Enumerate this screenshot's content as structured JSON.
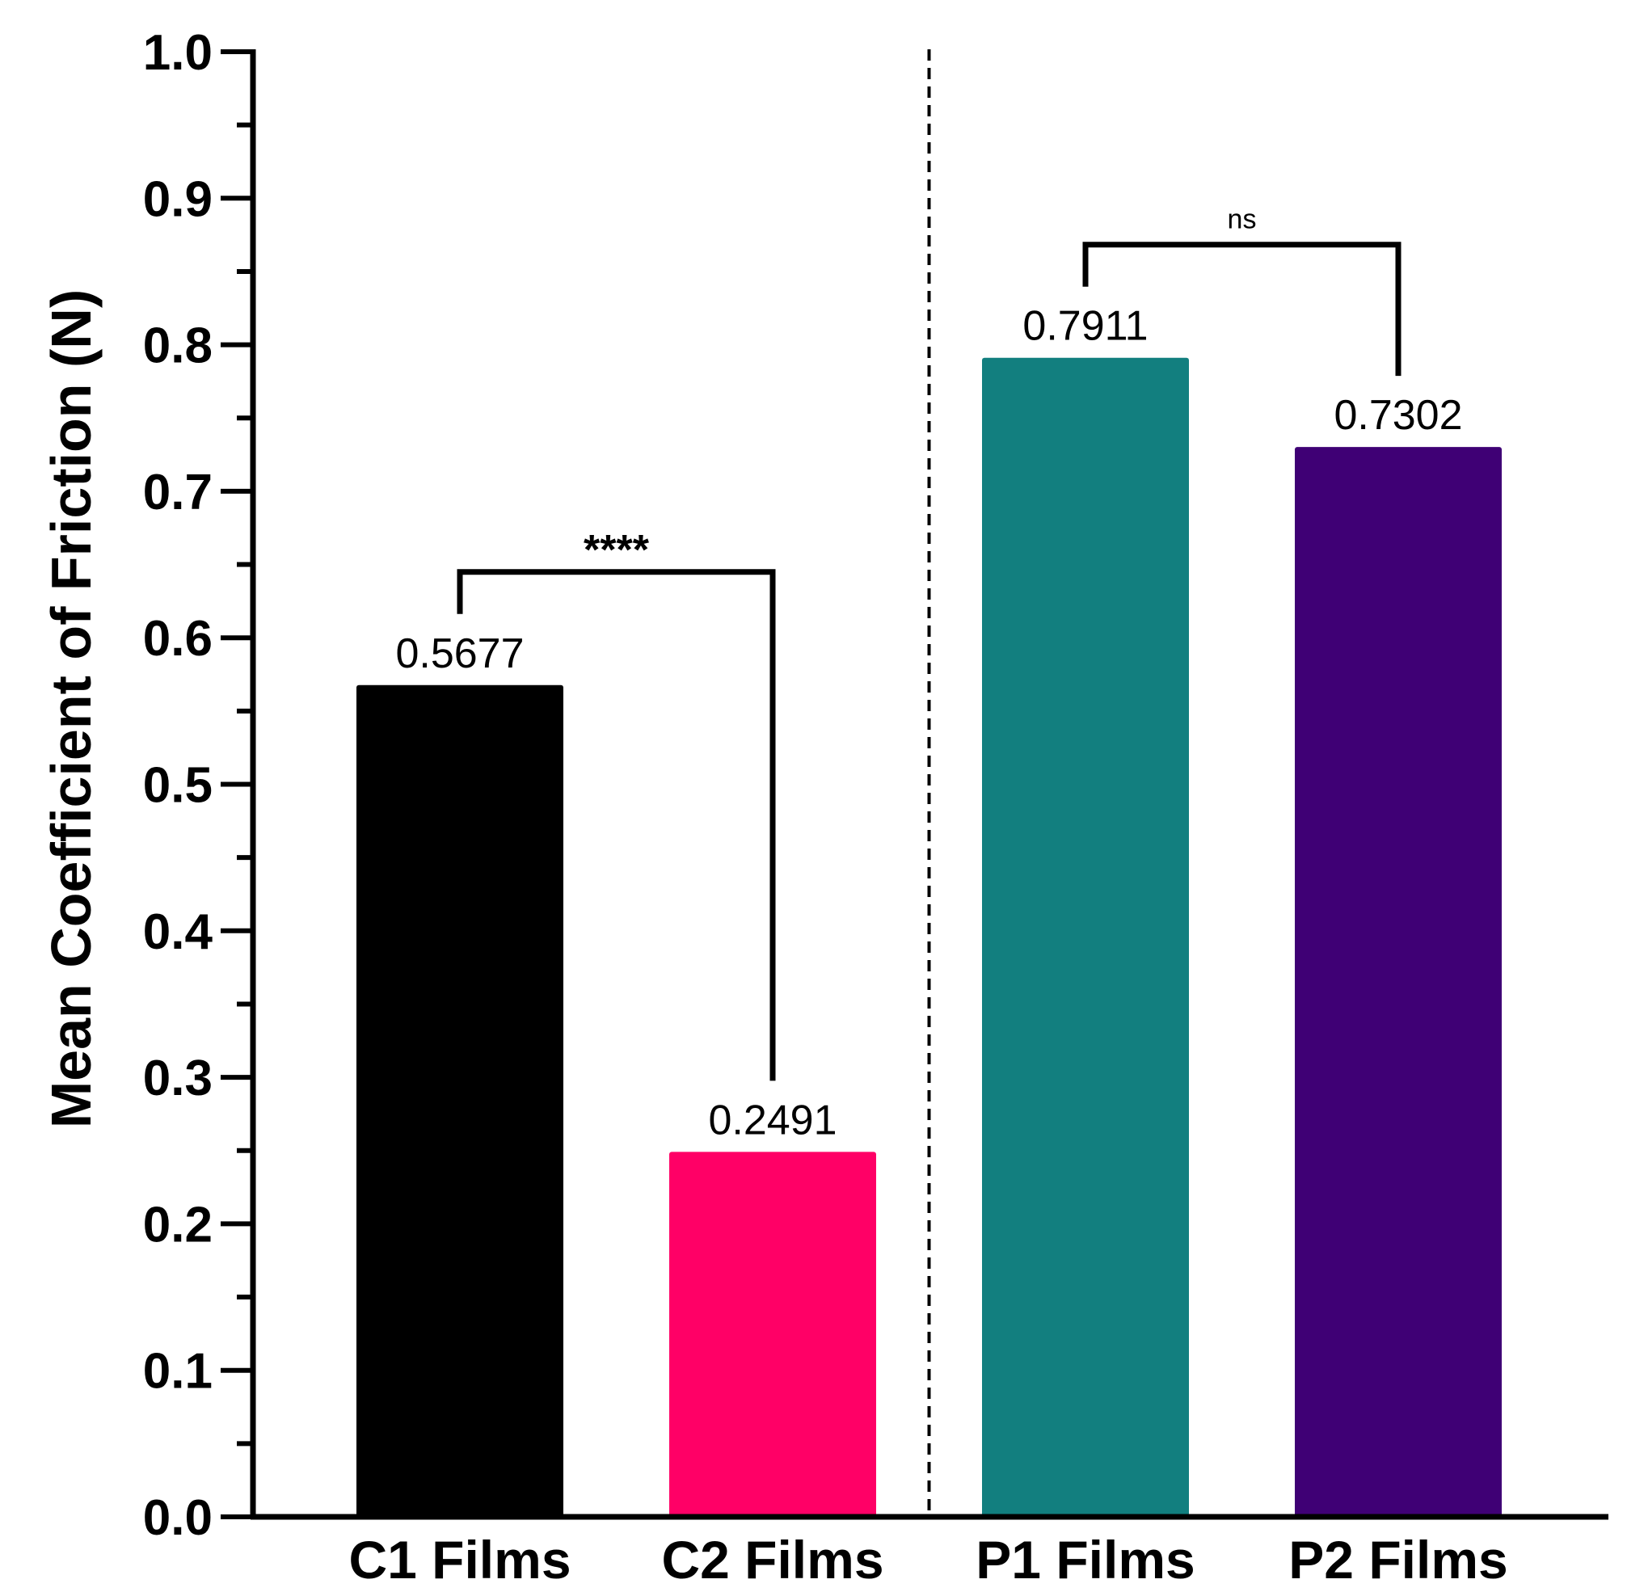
{
  "chart_data": {
    "type": "bar",
    "title": "",
    "xlabel": "",
    "ylabel": "Mean Coefficient of Friction (N)",
    "ylim": [
      0.0,
      1.0
    ],
    "yticks": [
      "0.0",
      "0.1",
      "0.2",
      "0.3",
      "0.4",
      "0.5",
      "0.6",
      "0.7",
      "0.8",
      "0.9",
      "1.0"
    ],
    "categories": [
      "C1 Films",
      "C2 Films",
      "P1 Films",
      "P2 Films"
    ],
    "values": [
      0.5677,
      0.2491,
      0.7911,
      0.7302
    ],
    "value_labels": [
      "0.5677",
      "0.2491",
      "0.7911",
      "0.7302"
    ],
    "colors": [
      "#000000",
      "#ff0066",
      "#127f7f",
      "#3f0075"
    ],
    "group_divider_after_index": 1,
    "significance": [
      {
        "from": 0,
        "to": 1,
        "label": "****"
      },
      {
        "from": 2,
        "to": 3,
        "label": "ns"
      }
    ]
  }
}
